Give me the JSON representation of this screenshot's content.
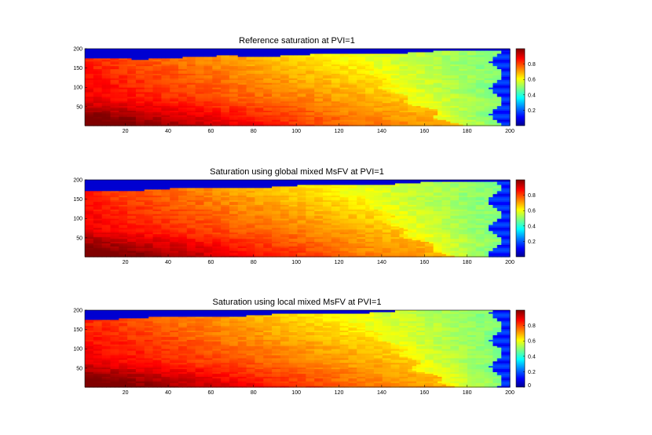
{
  "chart_data": [
    {
      "type": "heatmap",
      "title": "Reference saturation at PVI=1",
      "xlim": [
        1,
        200
      ],
      "ylim": [
        1,
        200
      ],
      "x_ticks": [
        20,
        40,
        60,
        80,
        100,
        120,
        140,
        160,
        180,
        200
      ],
      "y_ticks": [
        50,
        100,
        150,
        200
      ],
      "colorbar": {
        "min": 0,
        "max": 1,
        "ticks": [
          0.2,
          0.4,
          0.6,
          0.8
        ],
        "colormap": "jet"
      },
      "field": {
        "front_x_bottom": 172,
        "front_x_top": 118,
        "right_band_x": 194,
        "top_band_y": 172
      }
    },
    {
      "type": "heatmap",
      "title": "Saturation using global mixed MsFV at PVI=1",
      "xlim": [
        1,
        200
      ],
      "ylim": [
        1,
        200
      ],
      "x_ticks": [
        20,
        40,
        60,
        80,
        100,
        120,
        140,
        160,
        180,
        200
      ],
      "y_ticks": [
        50,
        100,
        150,
        200
      ],
      "colorbar": {
        "min": 0,
        "max": 1,
        "ticks": [
          0.2,
          0.4,
          0.6,
          0.8
        ],
        "colormap": "jet"
      },
      "field": {
        "front_x_bottom": 170,
        "front_x_top": 116,
        "right_band_x": 193,
        "top_band_y": 172
      }
    },
    {
      "type": "heatmap",
      "title": "Saturation using local mixed MsFV at PVI=1",
      "xlim": [
        1,
        200
      ],
      "ylim": [
        1,
        200
      ],
      "x_ticks": [
        20,
        40,
        60,
        80,
        100,
        120,
        140,
        160,
        180,
        200
      ],
      "y_ticks": [
        50,
        100,
        150,
        200
      ],
      "colorbar": {
        "min": 0,
        "max": 1,
        "ticks": [
          0,
          0.2,
          0.4,
          0.6,
          0.8
        ],
        "colormap": "jet"
      },
      "field": {
        "front_x_bottom": 174,
        "front_x_top": 120,
        "right_band_x": 194,
        "top_band_y": 178
      }
    }
  ]
}
